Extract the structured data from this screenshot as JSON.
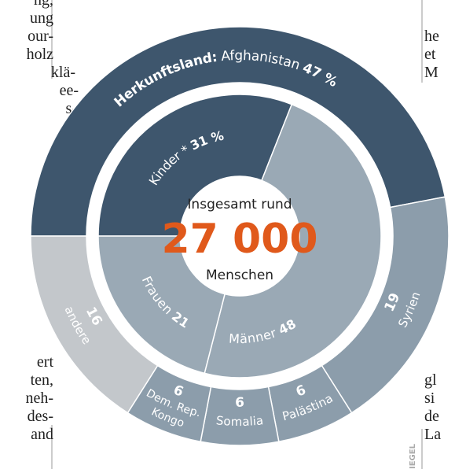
{
  "article_fragments": {
    "left": [
      "ng,",
      "ung",
      "our-",
      "holz",
      "klä-",
      "ee-",
      "s-",
      "ert",
      "ten,",
      "neh-",
      "des-",
      "and"
    ],
    "right": [
      "he",
      "et",
      "M",
      "gl",
      "si",
      "de",
      "La"
    ]
  },
  "credit": "IEGEL",
  "chart_data": {
    "type": "donut",
    "center": {
      "line1": "Insgesamt rund",
      "total": 27000,
      "total_label": "27 000",
      "line2": "Menschen"
    },
    "outer": {
      "title": "Herkunftsland:",
      "categories": [
        "Afghanistan",
        "Syrien",
        "Palästina",
        "Somalia",
        "Dem. Rep. Kongo",
        "andere"
      ],
      "values": [
        47,
        19,
        6,
        6,
        6,
        16
      ],
      "value_labels": [
        "47 %",
        "19",
        "6",
        "6",
        "6",
        "16"
      ],
      "colors": [
        "#3e566d",
        "#8c9dab",
        "#8c9dab",
        "#8c9dab",
        "#8c9dab",
        "#c3c7cb"
      ]
    },
    "inner": {
      "categories": [
        "Kinder *",
        "Männer",
        "Frauen"
      ],
      "values": [
        31,
        48,
        21
      ],
      "value_labels": [
        "31 %",
        "48",
        "21"
      ],
      "colors": [
        "#3e566d",
        "#9aa9b5",
        "#9aa9b5"
      ]
    }
  }
}
